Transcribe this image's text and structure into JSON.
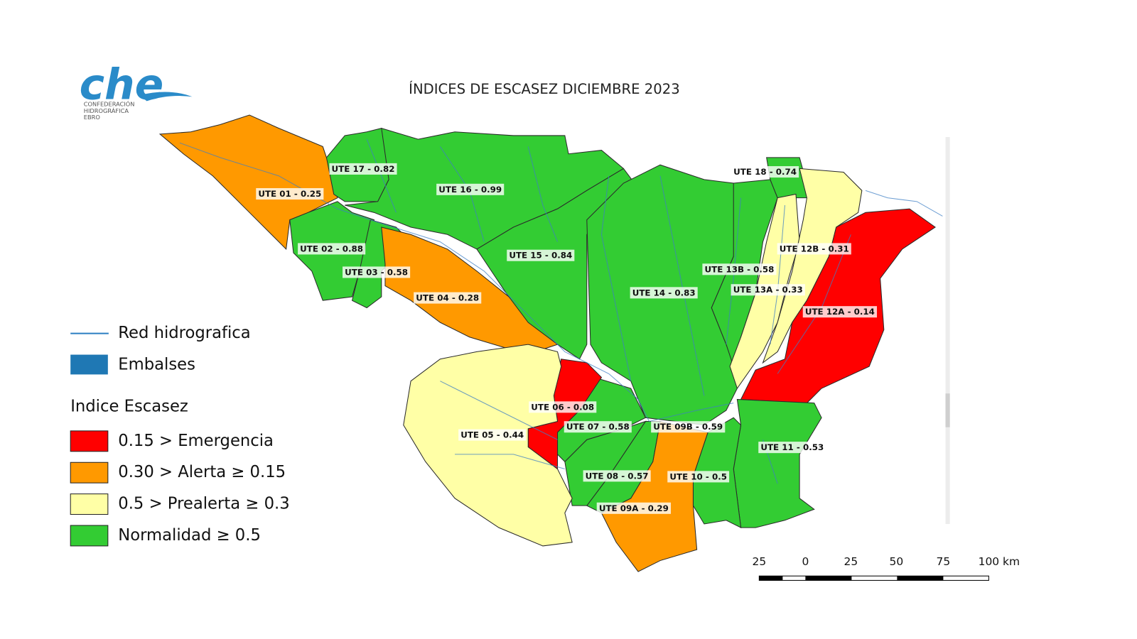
{
  "title": "ÍNDICES DE ESCASEZ DICIEMBRE 2023",
  "logo": {
    "mark": "che",
    "lines": [
      "CONFEDERACIÓN",
      "HIDROGRÁFICA",
      "EBRO"
    ]
  },
  "legend": {
    "layers": [
      "Red hidrografica",
      "Embalses"
    ],
    "heading": "Indice Escasez",
    "classes": [
      {
        "label": "0.15 > Emergencia",
        "color": "#ff0000"
      },
      {
        "label": "0.30 > Alerta  ≥ 0.15",
        "color": "#ff9900"
      },
      {
        "label": "0.5 > Prealerta ≥ 0.3",
        "color": "#ffffa6"
      },
      {
        "label": "Normalidad ≥ 0.5",
        "color": "#33cc33"
      }
    ]
  },
  "regions": [
    {
      "label": "UTE 01 - 0.25",
      "color": "#ff9900"
    },
    {
      "label": "UTE 17 - 0.82",
      "color": "#33cc33"
    },
    {
      "label": "UTE 16 - 0.99",
      "color": "#33cc33"
    },
    {
      "label": "UTE 02 - 0.88",
      "color": "#33cc33"
    },
    {
      "label": "UTE 03 - 0.58",
      "color": "#33cc33"
    },
    {
      "label": "UTE 04 - 0.28",
      "color": "#ff9900"
    },
    {
      "label": "UTE 15 - 0.84",
      "color": "#33cc33"
    },
    {
      "label": "UTE 14 - 0.83",
      "color": "#33cc33"
    },
    {
      "label": "UTE 13B - 0.58",
      "color": "#33cc33"
    },
    {
      "label": "UTE 18 - 0.74",
      "color": "#33cc33"
    },
    {
      "label": "UTE 13A - 0.33",
      "color": "#ffffa6"
    },
    {
      "label": "UTE 12B - 0.31",
      "color": "#ffffa6"
    },
    {
      "label": "UTE 12A - 0.14",
      "color": "#ff0000"
    },
    {
      "label": "UTE 11 - 0.53",
      "color": "#33cc33"
    },
    {
      "label": "UTE 10 - 0.5",
      "color": "#33cc33"
    },
    {
      "label": "UTE 09A - 0.29",
      "color": "#ff9900"
    },
    {
      "label": "UTE 09B - 0.59",
      "color": "#33cc33"
    },
    {
      "label": "UTE 08 - 0.57",
      "color": "#33cc33"
    },
    {
      "label": "UTE 07 - 0.58",
      "color": "#33cc33"
    },
    {
      "label": "UTE 06 - 0.08",
      "color": "#ff0000"
    },
    {
      "label": "UTE 05 - 0.44",
      "color": "#ffffa6"
    }
  ],
  "scale_bar": [
    "25",
    "0",
    "25",
    "50",
    "75",
    "100 km"
  ]
}
